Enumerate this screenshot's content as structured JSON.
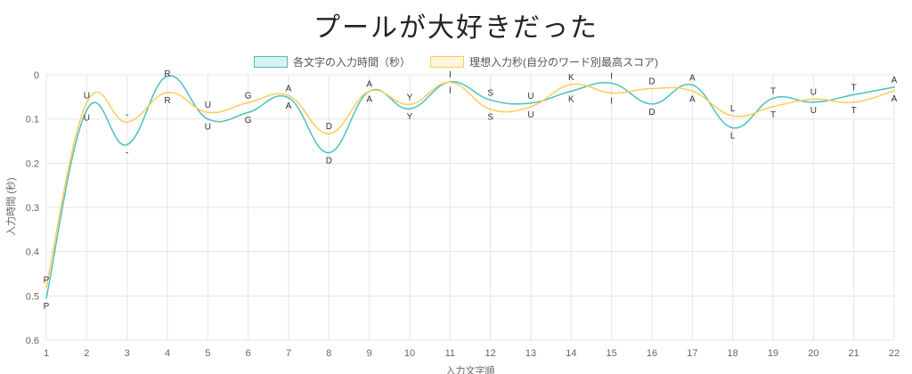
{
  "title": "プールが大好きだった",
  "chart_data": {
    "type": "line",
    "title": "プールが大好きだった",
    "xlabel": "入力文字順",
    "ylabel": "入力時間 (秒)",
    "x": [
      1,
      2,
      3,
      4,
      5,
      6,
      7,
      8,
      9,
      10,
      11,
      12,
      13,
      14,
      15,
      16,
      17,
      18,
      19,
      20,
      21,
      22
    ],
    "xlim": [
      1,
      22
    ],
    "ylim": [
      0,
      0.6
    ],
    "y_reversed": true,
    "y_ticks": [
      "0",
      "0.1",
      "0.2",
      "0.3",
      "0.4",
      "0.5",
      "0.6"
    ],
    "grid": true,
    "legend_position": "top",
    "series": [
      {
        "name": "各文字の入力時間（秒）",
        "color": "#4bc0c0",
        "fill": "#d9f2f2",
        "values": [
          0.505,
          0.08,
          0.158,
          0.003,
          0.1,
          0.085,
          0.052,
          0.176,
          0.037,
          0.077,
          0.016,
          0.057,
          0.064,
          0.037,
          0.019,
          0.066,
          0.023,
          0.12,
          0.053,
          0.062,
          0.045,
          0.028
        ],
        "labels": [
          "P",
          "U",
          "-",
          "R",
          "U",
          "G",
          "A",
          "D",
          "A",
          "Y",
          "I",
          "S",
          "U",
          "K",
          "I",
          "D",
          "A",
          "L",
          "T",
          "U",
          "T",
          "A"
        ]
      },
      {
        "name": "理想入力秒(自分のワード別最高スコア)",
        "color": "#ffcd56",
        "fill": "#fff5dd",
        "values": [
          0.48,
          0.063,
          0.107,
          0.04,
          0.085,
          0.063,
          0.047,
          0.133,
          0.037,
          0.067,
          0.017,
          0.078,
          0.072,
          0.022,
          0.041,
          0.031,
          0.037,
          0.093,
          0.072,
          0.055,
          0.062,
          0.036
        ],
        "labels": [
          "P",
          "U",
          "-",
          "R",
          "U",
          "G",
          "A",
          "D",
          "A",
          "Y",
          "I",
          "S",
          "U",
          "K",
          "I",
          "D",
          "A",
          "L",
          "T",
          "U",
          "T",
          "A"
        ]
      }
    ]
  }
}
